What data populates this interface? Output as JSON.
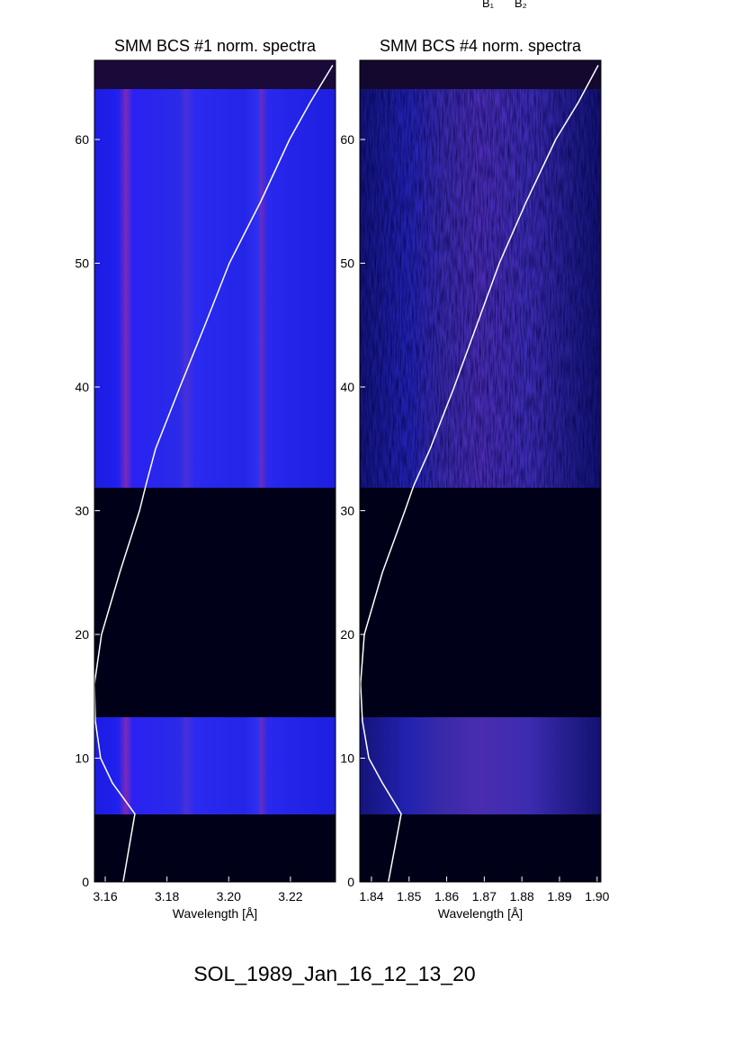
{
  "header_labels": [
    "B₁",
    "B₂"
  ],
  "chart_data": [
    {
      "type": "line",
      "title": "SMM BCS #1 norm. spectra",
      "xlabel": "Wavelength [Å]",
      "xlim": [
        3.1565,
        3.2346
      ],
      "xticks": [
        3.16,
        3.18,
        {
          "value": 3.2,
          "label": "3.20"
        },
        3.22
      ],
      "ylim": [
        0,
        66.4
      ],
      "yticks": [
        0,
        10,
        20,
        30,
        40,
        50,
        60
      ],
      "series": [
        {
          "color": "#ffffff",
          "x": [
            3.1658,
            3.1696,
            3.1623,
            3.1585,
            3.1568,
            3.1565,
            3.1588,
            3.1647,
            3.1711,
            3.1731,
            3.1763,
            3.1842,
            3.1923,
            3.2002,
            3.2104,
            3.2197,
            3.2264,
            3.2337
          ],
          "values": [
            0,
            5.5,
            8,
            10,
            13,
            16,
            20,
            25,
            30,
            32,
            35,
            40,
            45,
            50,
            55,
            60,
            63,
            66
          ]
        }
      ]
    },
    {
      "type": "line",
      "title": "SMM BCS #4 norm. spectra",
      "xlabel": "Wavelength [Å]",
      "xlim": [
        1.8369,
        1.901
      ],
      "xticks": [
        1.84,
        1.85,
        1.86,
        1.87,
        1.88,
        1.89,
        {
          "value": 1.9,
          "label": "1.90"
        }
      ],
      "ylim": [
        0,
        66.4
      ],
      "yticks": [
        0,
        10,
        20,
        30,
        40,
        50,
        60
      ],
      "series": [
        {
          "color": "#ffffff",
          "x": [
            1.8445,
            1.8479,
            1.8429,
            1.8393,
            1.8376,
            1.8371,
            1.8381,
            1.8429,
            1.8489,
            1.8512,
            1.8556,
            1.862,
            1.868,
            1.874,
            1.8812,
            1.889,
            1.895,
            1.9003
          ],
          "values": [
            0,
            5.5,
            8,
            10,
            13,
            16,
            20,
            25,
            30,
            32,
            35,
            40,
            45,
            50,
            55,
            60,
            63,
            66
          ]
        }
      ]
    }
  ],
  "footer": "SOL_1989_Jan_16_12_13_20"
}
